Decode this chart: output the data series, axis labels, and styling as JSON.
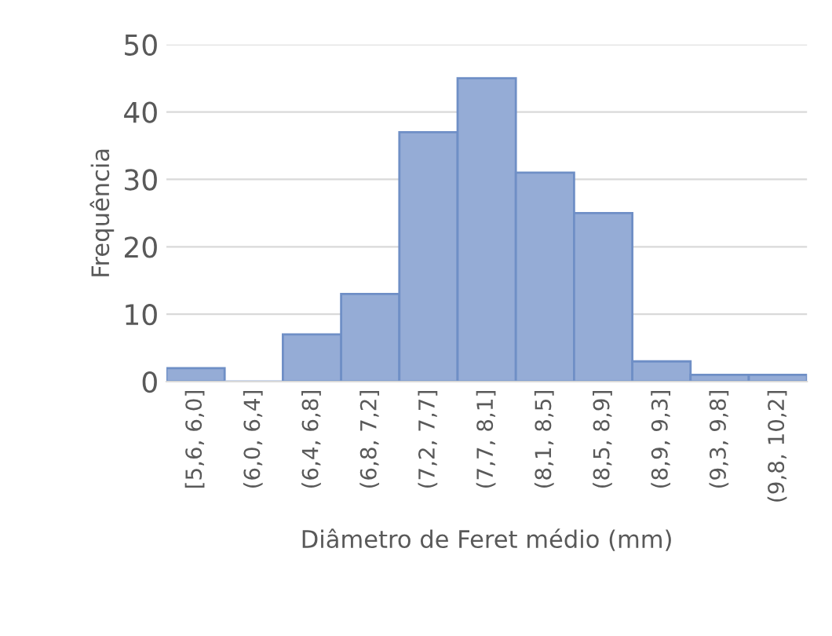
{
  "chart_data": {
    "type": "bar",
    "xlabel": "Diâmetro de Feret médio (mm)",
    "ylabel": "Frequência",
    "categories": [
      "[5,6, 6,0]",
      "(6,0, 6,4]",
      "(6,4, 6,8]",
      "(6,8, 7,2]",
      "(7,2, 7,7]",
      "(7,7, 8,1]",
      "(8,1, 8,5]",
      "(8,5, 8,9]",
      "(8,9, 9,3]",
      "(9,3, 9,8]",
      "(9,8, 10,2]"
    ],
    "values": [
      2,
      0,
      7,
      13,
      37,
      45,
      31,
      25,
      3,
      1,
      1
    ],
    "color": "#95acd6",
    "ylim": [
      0,
      50
    ],
    "yticks": [
      0,
      10,
      20,
      30,
      40,
      50
    ],
    "grid": "y"
  }
}
